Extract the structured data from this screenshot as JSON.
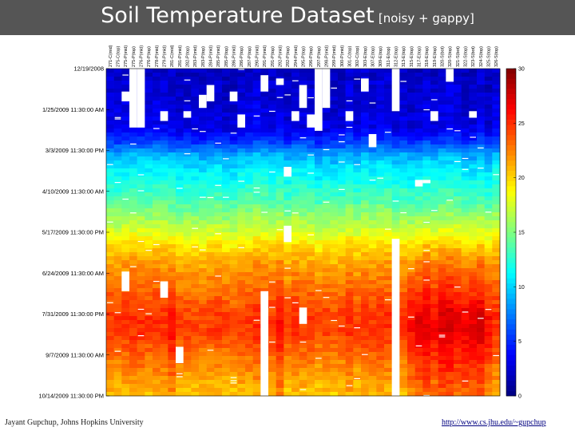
{
  "header": {
    "title": "Soil Temperature Dataset",
    "subtitle": "[noisy + gappy]"
  },
  "footer": {
    "author": "Jayant Gupchup, Johns Hopkins University",
    "link": "http://www.cs.jhu.edu/~gupchup"
  },
  "colors": {
    "title_bar": "#555555",
    "missing_data": "#ffffff"
  },
  "chart_data": {
    "type": "heatmap",
    "colormap": "jet",
    "sensors": [
      "271-C(mid)",
      "275-C(top)",
      "275-P(mid)",
      "275-P(top)",
      "276-P(mid)",
      "276-P(top)",
      "278-P(mid)",
      "279-P(mid)",
      "281-C(mid)",
      "281-P(mid)",
      "282-P(top)",
      "283-P(mid)",
      "283-P(top)",
      "284-P(mid)",
      "285-P(mid)",
      "285-P(top)",
      "286-P(mid)",
      "286-P(top)",
      "287-P(top)",
      "290-P(mid)",
      "291-P(mid)",
      "291-P(top)",
      "292-P(mid)",
      "292-P(top)",
      "294-P(mid)",
      "295-P(top)",
      "296-P(top)",
      "297-P(top)",
      "298-P(mid)",
      "299-P(mid)",
      "300-P(mid)",
      "301-C(top)",
      "302-C(top)",
      "303-E(top)",
      "307-E(top)",
      "309-E(top)",
      "311-E(top)",
      "312-E(top)",
      "313-E(top)",
      "315-E(top)",
      "317-E(top)",
      "318-E(top)",
      "319-E(top)",
      "320-S(bot)",
      "320-S(top)",
      "321-S(bot)",
      "322-S(top)",
      "323-S(bot)",
      "324-S(top)",
      "325-S(top)",
      "326-S(top)"
    ],
    "y_tick_labels": [
      "12/19/2008",
      "1/25/2009 11:30:00 AM",
      "3/3/2009 11:30:00 PM",
      "4/10/2009 11:30:00 AM",
      "5/17/2009 11:30:00 PM",
      "6/24/2009 11:30:00 AM",
      "7/31/2009 11:30:00 PM",
      "9/7/2009 11:30:00 AM",
      "10/14/2009 11:30:00 PM"
    ],
    "colorbar": {
      "min": 0,
      "max": 30,
      "ticks": [
        0,
        5,
        10,
        15,
        20,
        25,
        30
      ]
    },
    "seasonal_profile": [
      {
        "y": 0.0,
        "v": 2.0
      },
      {
        "y": 0.1,
        "v": 2.5
      },
      {
        "y": 0.18,
        "v": 3.0
      },
      {
        "y": 0.22,
        "v": 5.0
      },
      {
        "y": 0.26,
        "v": 8.5
      },
      {
        "y": 0.3,
        "v": 10.5
      },
      {
        "y": 0.35,
        "v": 12.0
      },
      {
        "y": 0.4,
        "v": 13.5
      },
      {
        "y": 0.45,
        "v": 15.5
      },
      {
        "y": 0.5,
        "v": 17.5
      },
      {
        "y": 0.55,
        "v": 20.0
      },
      {
        "y": 0.6,
        "v": 21.5
      },
      {
        "y": 0.65,
        "v": 22.5
      },
      {
        "y": 0.7,
        "v": 23.5
      },
      {
        "y": 0.75,
        "v": 24.5
      },
      {
        "y": 0.8,
        "v": 24.5
      },
      {
        "y": 0.85,
        "v": 23.5
      },
      {
        "y": 0.9,
        "v": 22.5
      },
      {
        "y": 0.95,
        "v": 21.5
      },
      {
        "y": 1.0,
        "v": 20.5
      }
    ],
    "hot_sensor_offsets": [
      {
        "sensor": 8,
        "offset": 1.5
      },
      {
        "sensor": 22,
        "offset": 1.2
      },
      {
        "sensor": 39,
        "offset": 2.0
      },
      {
        "sensor": 40,
        "offset": 2.5
      },
      {
        "sensor": 41,
        "offset": 2.5
      },
      {
        "sensor": 42,
        "offset": 2.0
      },
      {
        "sensor": 43,
        "offset": 2.8
      },
      {
        "sensor": 44,
        "offset": 2.5
      },
      {
        "sensor": 45,
        "offset": 2.0
      },
      {
        "sensor": 46,
        "offset": 2.8
      },
      {
        "sensor": 47,
        "offset": 3.0
      },
      {
        "sensor": 48,
        "offset": 2.5
      },
      {
        "sensor": 49,
        "offset": 2.0
      }
    ],
    "missing_columns": [
      {
        "sensor": 3,
        "from": 0.0,
        "to": 0.18
      },
      {
        "sensor": 4,
        "from": 0.0,
        "to": 0.18
      },
      {
        "sensor": 27,
        "from": 0.0,
        "to": 0.19
      },
      {
        "sensor": 37,
        "from": 0.0,
        "to": 0.13
      },
      {
        "sensor": 37,
        "from": 0.52,
        "to": 1.0
      },
      {
        "sensor": 20,
        "from": 0.68,
        "to": 1.0
      },
      {
        "sensor": 28,
        "from": 0.0,
        "to": 0.12
      }
    ],
    "missing_blocks": [
      {
        "sensor": 2,
        "from": 0.07,
        "to": 0.1
      },
      {
        "sensor": 7,
        "from": 0.13,
        "to": 0.16
      },
      {
        "sensor": 10,
        "from": 0.13,
        "to": 0.15
      },
      {
        "sensor": 12,
        "from": 0.08,
        "to": 0.12
      },
      {
        "sensor": 16,
        "from": 0.07,
        "to": 0.1
      },
      {
        "sensor": 17,
        "from": 0.14,
        "to": 0.18
      },
      {
        "sensor": 20,
        "from": 0.02,
        "to": 0.07
      },
      {
        "sensor": 22,
        "from": 0.03,
        "to": 0.05
      },
      {
        "sensor": 24,
        "from": 0.13,
        "to": 0.16
      },
      {
        "sensor": 25,
        "from": 0.05,
        "to": 0.12
      },
      {
        "sensor": 26,
        "from": 0.14,
        "to": 0.18
      },
      {
        "sensor": 31,
        "from": 0.13,
        "to": 0.16
      },
      {
        "sensor": 13,
        "from": 0.05,
        "to": 0.1
      },
      {
        "sensor": 33,
        "from": 0.03,
        "to": 0.07
      },
      {
        "sensor": 23,
        "from": 0.3,
        "to": 0.33
      },
      {
        "sensor": 23,
        "from": 0.48,
        "to": 0.53
      },
      {
        "sensor": 25,
        "from": 0.73,
        "to": 0.78
      },
      {
        "sensor": 40,
        "from": 0.34,
        "to": 0.36
      },
      {
        "sensor": 41,
        "from": 0.34,
        "to": 0.35
      },
      {
        "sensor": 42,
        "from": 0.13,
        "to": 0.16
      },
      {
        "sensor": 44,
        "from": 0.0,
        "to": 0.04
      },
      {
        "sensor": 47,
        "from": 0.13,
        "to": 0.15
      },
      {
        "sensor": 7,
        "from": 0.65,
        "to": 0.7
      },
      {
        "sensor": 2,
        "from": 0.62,
        "to": 0.68
      },
      {
        "sensor": 9,
        "from": 0.85,
        "to": 0.9
      },
      {
        "sensor": 34,
        "from": 0.2,
        "to": 0.24
      }
    ]
  }
}
